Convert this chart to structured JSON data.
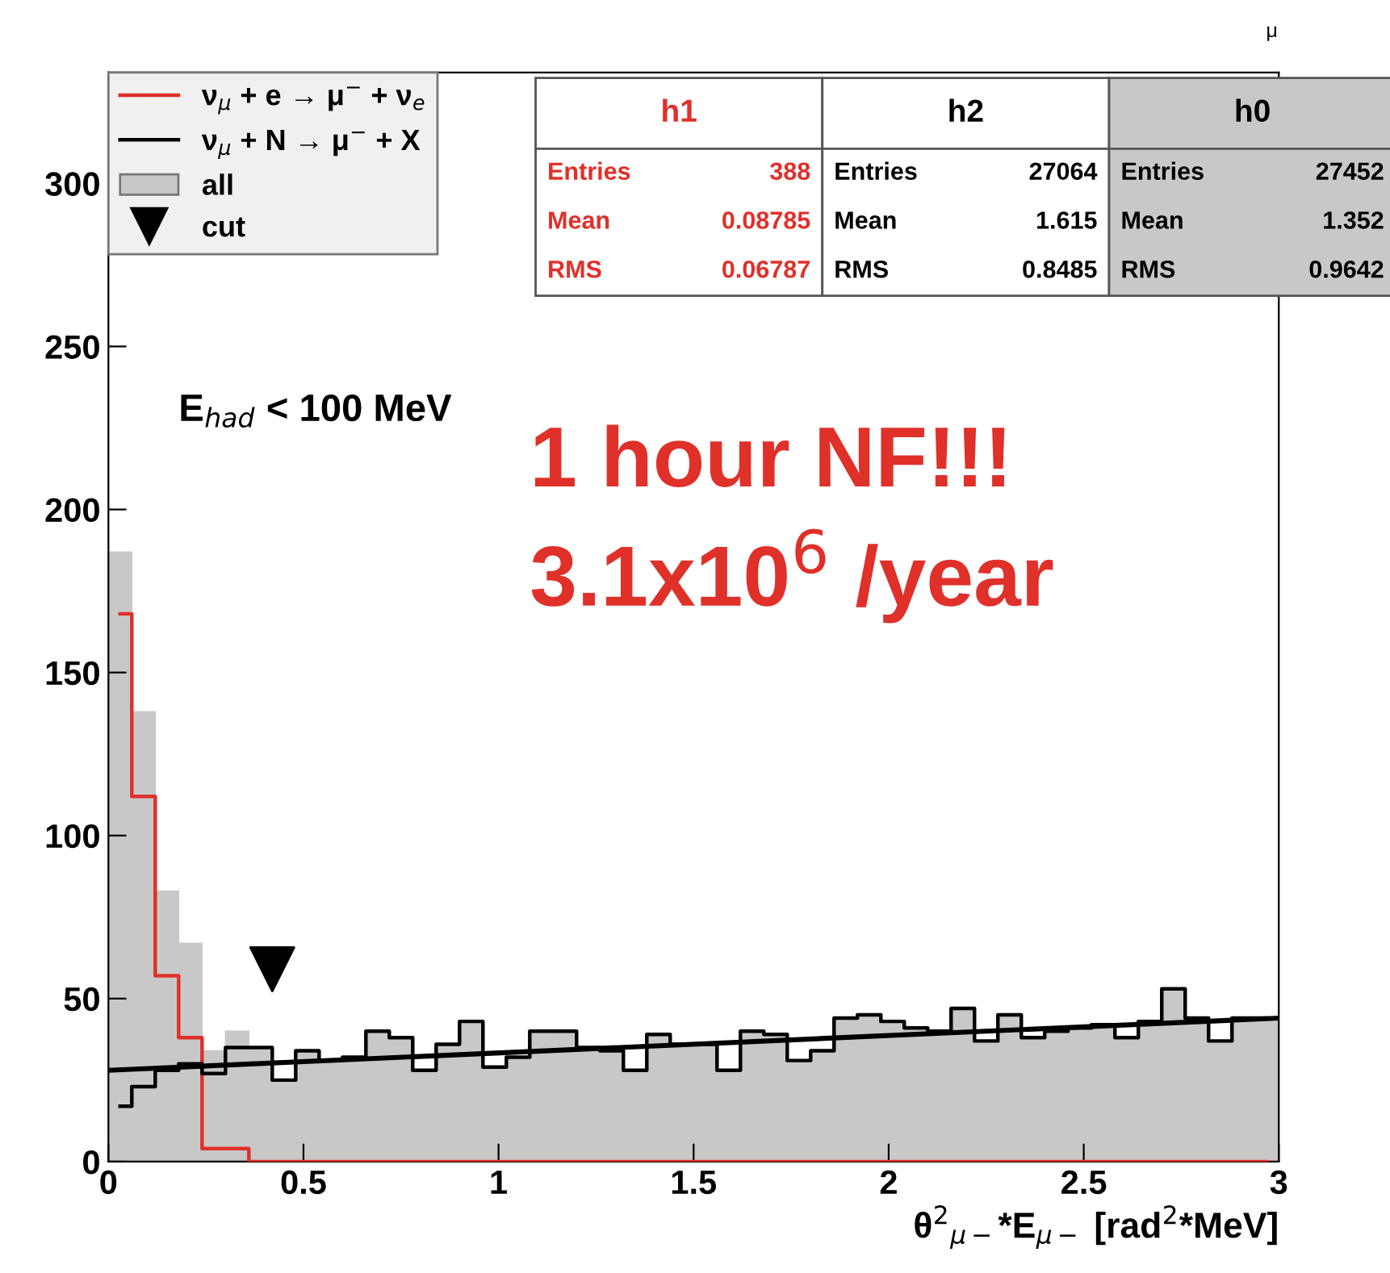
{
  "chart_data": {
    "type": "histogram",
    "xlabel": "θ$^{2}$$_{μ−}$*E$_{μ−}$ [rad$^{2}$*MeV]",
    "bins": [
      0,
      0.06,
      0.12,
      0.18,
      0.24,
      0.3,
      0.36,
      0.42,
      0.48,
      0.54,
      0.6,
      0.66,
      0.72,
      0.78,
      0.84,
      0.9,
      0.96,
      1.02,
      1.08,
      1.14,
      1.2,
      1.26,
      1.32,
      1.38,
      1.44,
      1.5,
      1.56,
      1.62,
      1.68,
      1.74,
      1.8,
      1.86,
      1.92,
      1.98,
      2.04,
      2.1,
      2.16,
      2.22,
      2.28,
      2.34,
      2.4,
      2.46,
      2.52,
      2.58,
      2.64,
      2.7,
      2.76,
      2.82,
      2.88,
      2.94,
      3
    ],
    "series": [
      {
        "name": "ν$_{μ}$ + e → μ$^{−}$ + ν$_{e}$",
        "type": "step",
        "color": "#e0302a",
        "x": [
          0.03,
          0.09,
          0.15,
          0.21,
          0.27,
          0.33,
          0.39,
          0.45,
          0.51,
          0.57,
          0.63,
          0.69,
          0.75,
          0.81,
          0.87,
          0.93,
          0.99,
          1.05,
          1.11,
          1.17,
          1.23,
          1.29,
          1.35,
          1.41,
          1.47,
          1.53,
          1.59,
          1.65,
          1.71,
          1.77,
          1.83,
          1.89,
          1.95,
          2.01,
          2.07,
          2.13,
          2.19,
          2.25,
          2.31,
          2.37,
          2.43,
          2.49,
          2.55,
          2.61,
          2.67,
          2.73,
          2.79,
          2.85,
          2.91,
          2.97
        ],
        "values": [
          168,
          112,
          57,
          38,
          4,
          4,
          0,
          0,
          0,
          0,
          0,
          0,
          0,
          0,
          0,
          0,
          0,
          0,
          0,
          0,
          0,
          0,
          0,
          0,
          0,
          0,
          0,
          0,
          0,
          0,
          0,
          0,
          0,
          0,
          0,
          0,
          0,
          0,
          0,
          0,
          0,
          0,
          0,
          0,
          0,
          0,
          0,
          0,
          0,
          0
        ]
      },
      {
        "name": "ν$_{μ}$ + N → μ$^{−}$ + X",
        "type": "step",
        "color": "#000000",
        "x": [
          0.03,
          0.09,
          0.15,
          0.21,
          0.27,
          0.33,
          0.39,
          0.45,
          0.51,
          0.57,
          0.63,
          0.69,
          0.75,
          0.81,
          0.87,
          0.93,
          0.99,
          1.05,
          1.11,
          1.17,
          1.23,
          1.29,
          1.35,
          1.41,
          1.47,
          1.53,
          1.59,
          1.65,
          1.71,
          1.77,
          1.83,
          1.89,
          1.95,
          2.01,
          2.07,
          2.13,
          2.19,
          2.25,
          2.31,
          2.37,
          2.43,
          2.49,
          2.55,
          2.61,
          2.67,
          2.73,
          2.79,
          2.85,
          2.91,
          2.97
        ],
        "values": [
          17,
          23,
          28,
          30,
          27,
          35,
          35,
          25,
          34,
          31,
          32,
          40,
          38,
          28,
          36,
          43,
          29,
          32,
          40,
          40,
          35,
          34,
          28,
          39,
          36,
          36,
          28,
          40,
          39,
          31,
          34,
          44,
          45,
          43,
          41,
          40,
          47,
          37,
          45,
          38,
          40,
          41,
          42,
          38,
          43,
          53,
          44,
          37,
          44,
          44
        ]
      },
      {
        "name": "all",
        "color": "#c8c8c8",
        "values": [
          187,
          138,
          83,
          67,
          34,
          40,
          35,
          25,
          34,
          31,
          32,
          40,
          38,
          28,
          36,
          43,
          29,
          32,
          40,
          40,
          35,
          34,
          28,
          39,
          36,
          36,
          28,
          40,
          39,
          31,
          34,
          44,
          45,
          43,
          41,
          40,
          47,
          37,
          45,
          38,
          40,
          41,
          42,
          38,
          43,
          53,
          44,
          37,
          44,
          44
        ]
      },
      {
        "type": "line",
        "color": "#000000",
        "x": [
          0,
          3
        ],
        "values": [
          28,
          44
        ]
      },
      {
        "name": "cut",
        "type": "scatter",
        "marker": "triangle",
        "color": "#000000",
        "x": [
          0.42
        ],
        "values": [
          59
        ]
      }
    ],
    "xlim": [
      0,
      3
    ],
    "ylim": [
      0,
      334
    ],
    "xticks": [
      0,
      0.5,
      1,
      1.5,
      2,
      2.5,
      3
    ],
    "yticks": [
      0,
      50,
      100,
      150,
      200,
      250,
      300
    ],
    "legend": "top left",
    "annotations": [
      "E$_{had}$ < 100 MeV",
      "1 hour NF!!!",
      "3.1x10$^{6}$ /year",
      "μ",
      "h1",
      "Entries",
      "388",
      "Mean",
      "0.08785",
      "RMS",
      "0.06787",
      "h2",
      "Entries",
      "27064",
      "Mean",
      "1.615",
      "RMS",
      "0.8485",
      "h0",
      "Entries",
      "27452",
      "Mean",
      "1.352",
      "RMS",
      "0.9642"
    ]
  }
}
